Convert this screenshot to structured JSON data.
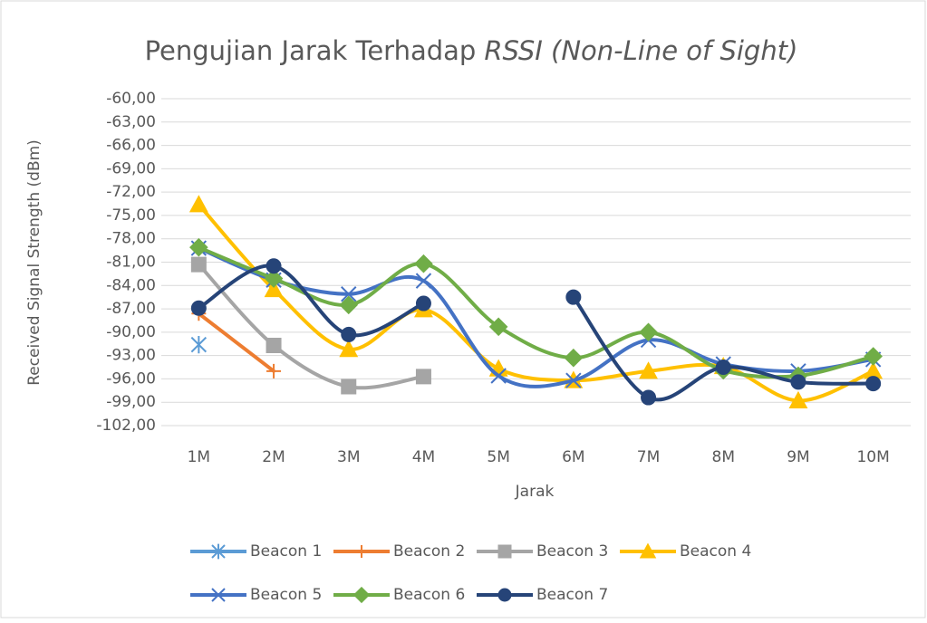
{
  "chart_data": {
    "type": "line",
    "title_parts": [
      "Pengujian Jarak Terhadap",
      "RSSI (Non-Line of Sight)"
    ],
    "y_label": "Received Signal Strength (dBm)",
    "x_label": "Jarak",
    "categories": [
      "1M",
      "2M",
      "3M",
      "4M",
      "5M",
      "6M",
      "7M",
      "8M",
      "9M",
      "10M"
    ],
    "ylim": [
      -102,
      -60
    ],
    "yticks": [
      {
        "value": -60,
        "label": "-60,00"
      },
      {
        "value": -63,
        "label": "-63,00"
      },
      {
        "value": -66,
        "label": "-66,00"
      },
      {
        "value": -69,
        "label": "-69,00"
      },
      {
        "value": -72,
        "label": "-72,00"
      },
      {
        "value": -75,
        "label": "-75,00"
      },
      {
        "value": -78,
        "label": "-78,00"
      },
      {
        "value": -81,
        "label": "-81,00"
      },
      {
        "value": -84,
        "label": "-84,00"
      },
      {
        "value": -87,
        "label": "-87,00"
      },
      {
        "value": -90,
        "label": "-90,00"
      },
      {
        "value": -93,
        "label": "-93,00"
      },
      {
        "value": -96,
        "label": "-96,00"
      },
      {
        "value": -99,
        "label": "-99,00"
      },
      {
        "value": -102,
        "label": "-102,00"
      }
    ],
    "grid": true,
    "legend": "bottom",
    "series": [
      {
        "name": "Beacon 1",
        "color": "#5b9bd5",
        "marker": "asterisk",
        "values": [
          -91.6,
          null,
          null,
          null,
          null,
          null,
          null,
          null,
          null,
          null
        ]
      },
      {
        "name": "Beacon 2",
        "color": "#ed7d31",
        "marker": "plus",
        "values": [
          -87.6,
          -95.0,
          null,
          null,
          null,
          null,
          null,
          null,
          null,
          null
        ]
      },
      {
        "name": "Beacon 3",
        "color": "#a5a5a5",
        "marker": "square",
        "values": [
          -81.3,
          -91.7,
          -97.0,
          -95.7,
          null,
          null,
          null,
          null,
          null,
          null
        ]
      },
      {
        "name": "Beacon 4",
        "color": "#ffc000",
        "marker": "triangle",
        "values": [
          -73.6,
          -84.5,
          -92.2,
          -87.1,
          -94.7,
          -96.2,
          -95.0,
          -94.4,
          -98.8,
          -95.0
        ]
      },
      {
        "name": "Beacon 5",
        "color": "#4472c4",
        "marker": "x",
        "values": [
          -79.2,
          -83.3,
          -85.1,
          -83.4,
          -95.6,
          -96.2,
          -91.0,
          -94.1,
          -95.0,
          -93.5
        ]
      },
      {
        "name": "Beacon 6",
        "color": "#70ad47",
        "marker": "diamond",
        "values": [
          -79.1,
          -83.1,
          -86.5,
          -81.2,
          -89.3,
          -93.3,
          -90.0,
          -94.9,
          -95.6,
          -93.1
        ]
      },
      {
        "name": "Beacon 7",
        "color": "#264478",
        "marker": "circle",
        "values": [
          -86.9,
          -81.5,
          -90.3,
          -86.3,
          null,
          -85.5,
          -98.4,
          -94.5,
          -96.4,
          -96.6
        ]
      }
    ]
  }
}
